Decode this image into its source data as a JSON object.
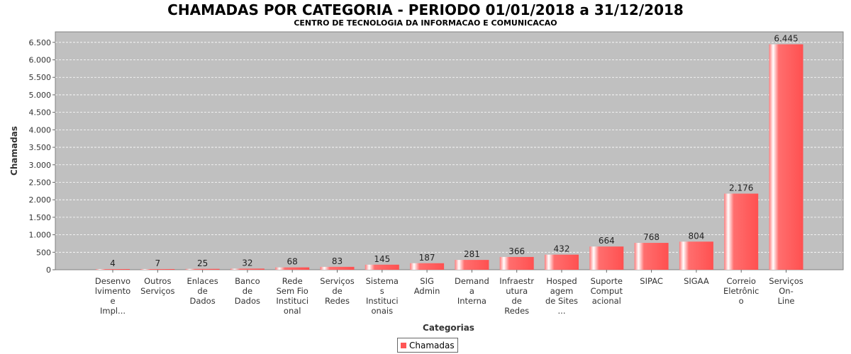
{
  "chart_data": {
    "type": "bar",
    "title": "CHAMADAS POR CATEGORIA - PERIODO 01/01/2018 a 31/12/2018",
    "subtitle": "CENTRO DE TECNOLOGIA DA INFORMACAO E COMUNICACAO",
    "xlabel": "Categorias",
    "ylabel": "Chamadas",
    "ylim": [
      0,
      6800
    ],
    "yticks": [
      0,
      500,
      1000,
      1500,
      2000,
      2500,
      3000,
      3500,
      4000,
      4500,
      5000,
      5500,
      6000,
      6500
    ],
    "ytick_labels": [
      "0",
      "500",
      "1.000",
      "1.500",
      "2.000",
      "2.500",
      "3.000",
      "3.500",
      "4.000",
      "4.500",
      "5.000",
      "5.500",
      "6.000",
      "6.500"
    ],
    "grid": true,
    "legend_position": "bottom",
    "categories": [
      [
        "Desenvo",
        "lvimento",
        "e",
        "Impl..."
      ],
      [
        "Outros",
        "Serviços"
      ],
      [
        "Enlaces",
        "de",
        "Dados"
      ],
      [
        "Banco",
        "de",
        "Dados"
      ],
      [
        "Rede",
        "Sem Fio",
        "Instituci",
        "onal"
      ],
      [
        "Serviços",
        "de",
        "Redes"
      ],
      [
        "Sistema",
        "s",
        "Instituci",
        "onais"
      ],
      [
        "SIG",
        "Admin"
      ],
      [
        "Demand",
        "a",
        "Interna"
      ],
      [
        "Infraestr",
        "utura",
        "de",
        "Redes"
      ],
      [
        "Hosped",
        "agem",
        "de Sites",
        "..."
      ],
      [
        "Suporte",
        "Comput",
        "acional"
      ],
      [
        "SIPAC"
      ],
      [
        "SIGAA"
      ],
      [
        "Correio",
        "Eletrônic",
        "o"
      ],
      [
        "Serviços",
        "On-",
        "Line"
      ]
    ],
    "series": [
      {
        "name": "Chamadas",
        "color": "#ff5555",
        "values": [
          4,
          7,
          25,
          32,
          68,
          83,
          145,
          187,
          281,
          366,
          432,
          664,
          768,
          804,
          2176,
          6445
        ],
        "labels": [
          "4",
          "7",
          "25",
          "32",
          "68",
          "83",
          "145",
          "187",
          "281",
          "366",
          "432",
          "664",
          "768",
          "804",
          "2.176",
          "6.445"
        ]
      }
    ]
  },
  "colors": {
    "plot_background": "#c0c0c0",
    "bar": "#ff5555",
    "gridline": "#ffffff"
  }
}
